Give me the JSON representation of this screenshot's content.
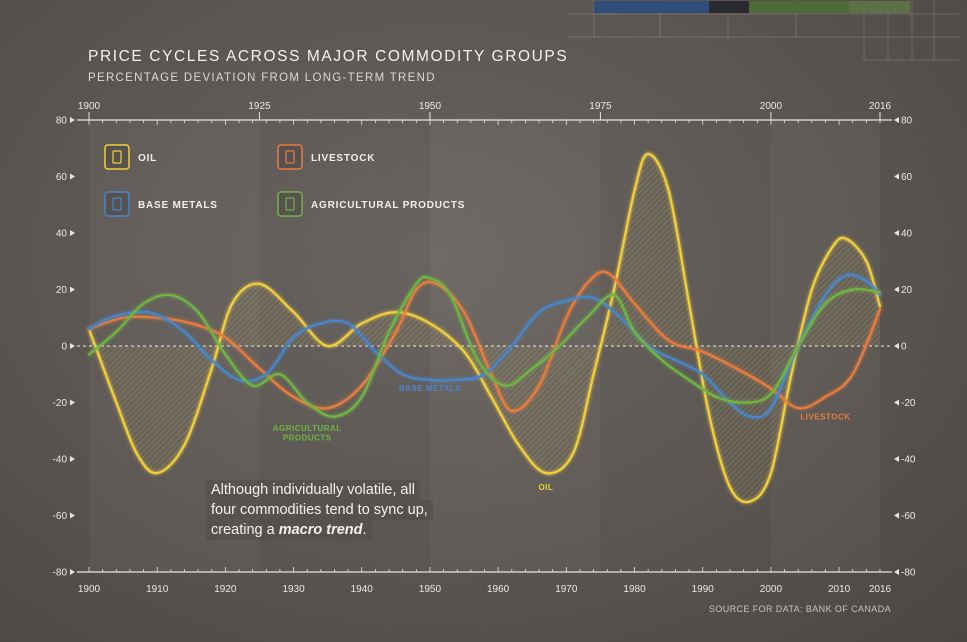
{
  "title": "PRICE CYCLES ACROSS MAJOR COMMODITY GROUPS",
  "subtitle": "PERCENTAGE DEVIATION FROM LONG-TERM TREND",
  "source": "SOURCE FOR DATA: BANK OF CANADA",
  "callout": {
    "line1": "Although individually volatile, all",
    "line2": "four commodities tend to sync up,",
    "line3_pre": "creating a ",
    "line3_bold": "macro trend",
    "line3_post": "."
  },
  "chart_data": {
    "type": "line",
    "xlim": [
      1900,
      2016
    ],
    "ylim": [
      -80,
      80
    ],
    "x_ticks_bottom": [
      "1900",
      "1910",
      "1920",
      "1930",
      "1940",
      "1950",
      "1960",
      "1970",
      "1980",
      "1990",
      "2000",
      "2010",
      "2016"
    ],
    "x_ticks_top": [
      "1900",
      "1925",
      "1950",
      "1975",
      "2000",
      "2016"
    ],
    "y_ticks": [
      "80",
      "60",
      "40",
      "20",
      "0",
      "-20",
      "-40",
      "-60",
      "-80"
    ],
    "legend_position": "top-left",
    "colors": {
      "oil": "#f2cf3c",
      "livestock": "#e97b3c",
      "base_metals": "#4a86c8",
      "agri": "#6fb543"
    },
    "series": [
      {
        "name": "OIL",
        "key": "oil",
        "x": [
          1900,
          1904,
          1907,
          1910,
          1914,
          1918,
          1921,
          1925,
          1930,
          1935,
          1940,
          1945,
          1950,
          1955,
          1959,
          1963,
          1967,
          1971,
          1974,
          1977,
          1980,
          1982,
          1985,
          1988,
          1991,
          1994,
          1997,
          2000,
          2003,
          2006,
          2009,
          2011,
          2014,
          2016
        ],
        "values": [
          6,
          -20,
          -38,
          -45,
          -35,
          -8,
          15,
          22,
          12,
          0,
          8,
          12,
          8,
          -2,
          -18,
          -35,
          -45,
          -38,
          -10,
          20,
          55,
          68,
          55,
          15,
          -25,
          -50,
          -55,
          -45,
          -10,
          20,
          35,
          38,
          30,
          14
        ]
      },
      {
        "name": "LIVESTOCK",
        "key": "livestock",
        "x": [
          1900,
          1905,
          1910,
          1915,
          1920,
          1925,
          1930,
          1935,
          1940,
          1945,
          1948,
          1951,
          1955,
          1959,
          1962,
          1966,
          1970,
          1973,
          1976,
          1980,
          1985,
          1990,
          1995,
          2000,
          2004,
          2008,
          2012,
          2016
        ],
        "values": [
          6,
          10,
          10,
          8,
          3,
          -8,
          -18,
          -22,
          -14,
          5,
          20,
          22,
          12,
          -10,
          -23,
          -14,
          10,
          22,
          26,
          15,
          2,
          -2,
          -8,
          -15,
          -22,
          -18,
          -10,
          13
        ]
      },
      {
        "name": "BASE METALS",
        "key": "base_metals",
        "x": [
          1900,
          1903,
          1907,
          1910,
          1914,
          1918,
          1922,
          1926,
          1930,
          1934,
          1938,
          1942,
          1946,
          1950,
          1954,
          1958,
          1962,
          1966,
          1970,
          1974,
          1978,
          1982,
          1986,
          1990,
          1994,
          1997,
          2000,
          2004,
          2008,
          2011,
          2014,
          2016
        ],
        "values": [
          6,
          10,
          12,
          11,
          5,
          -5,
          -12,
          -10,
          3,
          8,
          8,
          -2,
          -10,
          -12,
          -12,
          -10,
          0,
          12,
          16,
          17,
          10,
          0,
          -5,
          -10,
          -20,
          -25,
          -22,
          0,
          18,
          25,
          23,
          18
        ]
      },
      {
        "name": "AGRICULTURAL PRODUCTS",
        "key": "agri",
        "x": [
          1900,
          1904,
          1908,
          1912,
          1916,
          1920,
          1924,
          1928,
          1932,
          1936,
          1940,
          1944,
          1948,
          1950,
          1953,
          1957,
          1961,
          1965,
          1969,
          1973,
          1977,
          1980,
          1984,
          1988,
          1992,
          1996,
          2000,
          2004,
          2008,
          2012,
          2016
        ],
        "values": [
          -3,
          5,
          15,
          18,
          12,
          -3,
          -14,
          -10,
          -20,
          -25,
          -18,
          5,
          22,
          24,
          18,
          -5,
          -14,
          -8,
          0,
          10,
          18,
          5,
          -5,
          -12,
          -18,
          -20,
          -17,
          0,
          15,
          20,
          19
        ]
      }
    ],
    "legend": [
      {
        "label": "OIL",
        "key": "oil"
      },
      {
        "label": "LIVESTOCK",
        "key": "livestock"
      },
      {
        "label": "BASE METALS",
        "key": "base_metals"
      },
      {
        "label": "AGRICULTURAL PRODUCTS",
        "key": "agri"
      }
    ],
    "annotations": [
      {
        "text": "BASE METALS",
        "key": "base_metals",
        "x": 1950,
        "y": -16
      },
      {
        "text": "AGRICULTURAL",
        "key": "agri",
        "x": 1932,
        "y": -30
      },
      {
        "text": "PRODUCTS",
        "key": "agri",
        "x": 1932,
        "y": -33.5
      },
      {
        "text": "OIL",
        "key": "oil",
        "x": 1967,
        "y": -51
      },
      {
        "text": "LIVESTOCK",
        "key": "livestock",
        "x": 2008,
        "y": -26
      }
    ]
  }
}
